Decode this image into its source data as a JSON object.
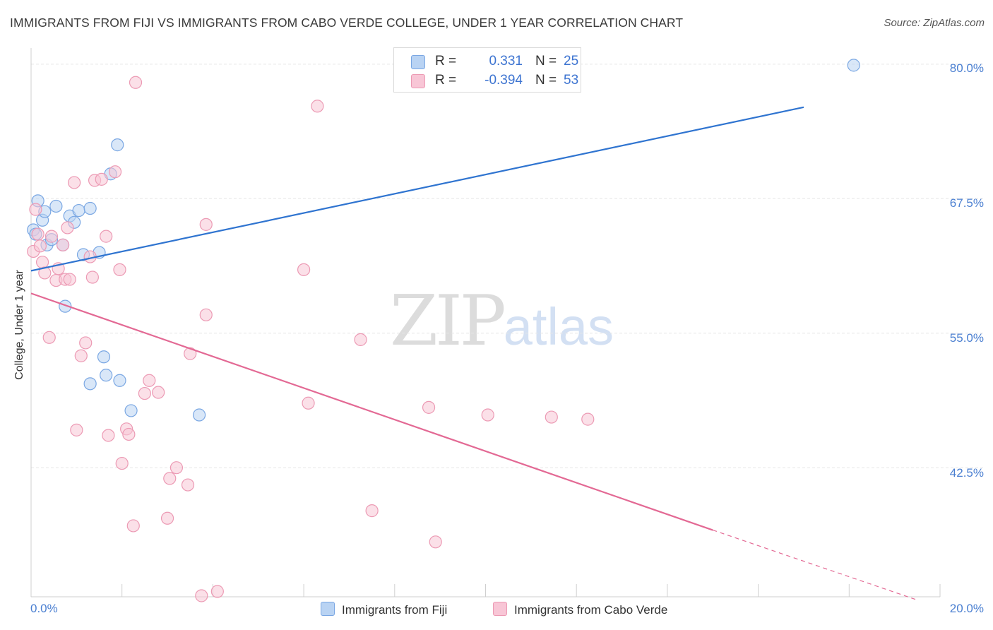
{
  "title": "IMMIGRANTS FROM FIJI VS IMMIGRANTS FROM CABO VERDE COLLEGE, UNDER 1 YEAR CORRELATION CHART",
  "source": "Source: ZipAtlas.com",
  "watermark": {
    "zip": "ZIP",
    "atlas": "atlas"
  },
  "colors": {
    "fiji_fill": "#b9d3f3",
    "fiji_stroke": "#7aa7e3",
    "fiji_line": "#2f74d0",
    "cabo_fill": "#f8c6d6",
    "cabo_stroke": "#ec9ab4",
    "cabo_line": "#e36994",
    "grid": "#e6e6e6",
    "tick_text": "#4a7fd1"
  },
  "legend": {
    "fiji": {
      "r_label": "R =",
      "r_value": "0.331",
      "n_label": "N =",
      "n_value": "25"
    },
    "cabo": {
      "r_label": "R =",
      "r_value": "-0.394",
      "n_label": "N =",
      "n_value": "53"
    }
  },
  "bottom_legend": {
    "fiji": "Immigrants from Fiji",
    "cabo": "Immigrants from Cabo Verde"
  },
  "chart_data": {
    "type": "scatter",
    "title": "IMMIGRANTS FROM FIJI VS IMMIGRANTS FROM CABO VERDE COLLEGE, UNDER 1 YEAR CORRELATION CHART",
    "xlabel": "",
    "ylabel": "College, Under 1 year",
    "xlim": [
      0,
      20
    ],
    "ylim": [
      30.5,
      81.5
    ],
    "x_tick_labels": [
      "0.0%",
      "20.0%"
    ],
    "y_ticks": [
      42.5,
      55.0,
      67.5,
      80.0
    ],
    "y_tick_labels": [
      "42.5%",
      "55.0%",
      "67.5%",
      "80.0%"
    ],
    "grid": true,
    "series": [
      {
        "name": "Immigrants from Fiji",
        "key": "fiji",
        "points": [
          [
            0.05,
            64.6
          ],
          [
            0.1,
            64.2
          ],
          [
            0.15,
            67.3
          ],
          [
            0.25,
            65.5
          ],
          [
            0.3,
            66.3
          ],
          [
            0.35,
            63.2
          ],
          [
            0.45,
            63.7
          ],
          [
            0.55,
            66.8
          ],
          [
            0.7,
            63.2
          ],
          [
            0.85,
            65.9
          ],
          [
            0.95,
            65.3
          ],
          [
            1.05,
            66.4
          ],
          [
            0.75,
            57.5
          ],
          [
            1.15,
            62.3
          ],
          [
            1.3,
            66.6
          ],
          [
            1.5,
            62.5
          ],
          [
            1.6,
            52.8
          ],
          [
            1.65,
            51.1
          ],
          [
            1.75,
            69.8
          ],
          [
            1.9,
            72.5
          ],
          [
            1.95,
            50.6
          ],
          [
            2.2,
            47.8
          ],
          [
            1.3,
            50.3
          ],
          [
            3.7,
            47.4
          ],
          [
            18.1,
            79.9
          ]
        ],
        "trend": {
          "x0": 0,
          "y0": 60.8,
          "x1": 17.0,
          "y1": 76.0
        }
      },
      {
        "name": "Immigrants from Cabo Verde",
        "key": "cabo",
        "points": [
          [
            0.05,
            62.6
          ],
          [
            0.1,
            66.5
          ],
          [
            0.15,
            64.2
          ],
          [
            0.2,
            63.1
          ],
          [
            0.25,
            61.6
          ],
          [
            0.3,
            60.6
          ],
          [
            0.4,
            54.6
          ],
          [
            0.45,
            64.0
          ],
          [
            0.55,
            59.9
          ],
          [
            0.6,
            61.0
          ],
          [
            0.7,
            63.2
          ],
          [
            0.75,
            60.0
          ],
          [
            0.8,
            64.8
          ],
          [
            0.85,
            60.0
          ],
          [
            0.95,
            69.0
          ],
          [
            1.0,
            46.0
          ],
          [
            1.1,
            52.9
          ],
          [
            1.2,
            54.1
          ],
          [
            1.3,
            62.1
          ],
          [
            1.35,
            60.2
          ],
          [
            1.4,
            69.2
          ],
          [
            1.55,
            69.3
          ],
          [
            1.65,
            64.0
          ],
          [
            1.7,
            45.5
          ],
          [
            1.85,
            70.0
          ],
          [
            1.95,
            60.9
          ],
          [
            2.0,
            42.9
          ],
          [
            2.1,
            46.1
          ],
          [
            2.15,
            45.6
          ],
          [
            2.25,
            37.1
          ],
          [
            2.3,
            78.3
          ],
          [
            2.5,
            49.4
          ],
          [
            2.6,
            50.6
          ],
          [
            2.8,
            49.5
          ],
          [
            3.0,
            37.8
          ],
          [
            3.05,
            41.5
          ],
          [
            3.2,
            42.5
          ],
          [
            3.45,
            40.9
          ],
          [
            3.5,
            53.1
          ],
          [
            3.75,
            30.6
          ],
          [
            3.85,
            65.1
          ],
          [
            3.85,
            56.7
          ],
          [
            4.1,
            31.0
          ],
          [
            6.0,
            60.9
          ],
          [
            6.1,
            48.5
          ],
          [
            6.3,
            76.1
          ],
          [
            7.25,
            54.4
          ],
          [
            7.5,
            38.5
          ],
          [
            8.75,
            48.1
          ],
          [
            8.9,
            35.6
          ],
          [
            10.05,
            47.4
          ],
          [
            11.45,
            47.2
          ],
          [
            12.25,
            47.0
          ]
        ],
        "trend": {
          "x0": 0,
          "y0": 58.7,
          "x1": 15.0,
          "y1": 36.7
        },
        "trend_dashed": {
          "x0": 15.0,
          "y0": 36.7,
          "x1": 19.5,
          "y1": 30.2
        }
      }
    ]
  }
}
